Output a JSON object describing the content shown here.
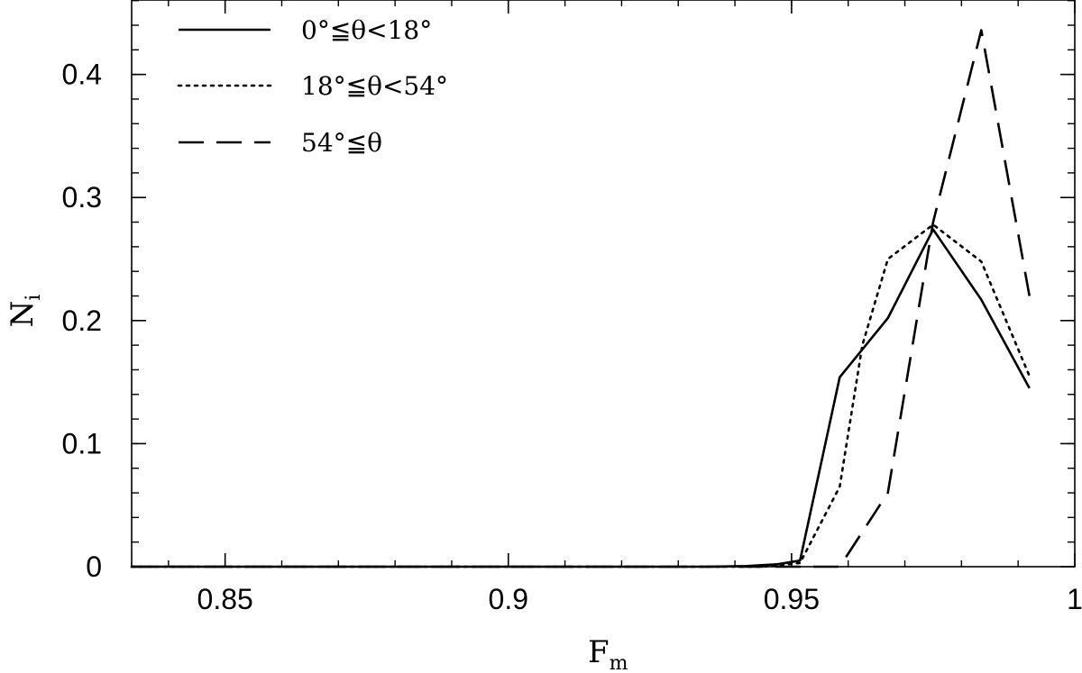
{
  "chart_data": {
    "type": "line",
    "xlabel": "F",
    "xlabel_sub": "m",
    "ylabel": "N",
    "ylabel_sub": "i",
    "xlim": [
      0.8335,
      1.0
    ],
    "ylim": [
      0,
      0.4605
    ],
    "x_ticks": [
      0.85,
      0.9,
      0.95,
      1.0
    ],
    "x_tick_labels": [
      "0.85",
      "0.9",
      "0.95",
      "1"
    ],
    "y_ticks": [
      0,
      0.1,
      0.2,
      0.3,
      0.4
    ],
    "y_tick_labels": [
      "0",
      "0.1",
      "0.2",
      "0.3",
      "0.4"
    ],
    "grid": false,
    "legend_position": "top-left",
    "series": [
      {
        "name": "0°≦θ<18°",
        "style": "solid",
        "x": [
          0.8335,
          0.935,
          0.942,
          0.9475,
          0.9515,
          0.9585,
          0.967,
          0.975,
          0.9835,
          0.992
        ],
        "y": [
          0,
          0,
          0.0005,
          0.002,
          0.005,
          0.154,
          0.202,
          0.274,
          0.217,
          0.145
        ]
      },
      {
        "name": "18°≦θ<54°",
        "style": "dotted",
        "x": [
          0.8335,
          0.945,
          0.9515,
          0.9585,
          0.9625,
          0.967,
          0.975,
          0.9835,
          0.992
        ],
        "y": [
          0,
          0,
          0.003,
          0.065,
          0.18,
          0.25,
          0.278,
          0.248,
          0.155
        ]
      },
      {
        "name": "54°≦θ",
        "style": "dashed",
        "x": [
          0.8335,
          0.9585,
          0.967,
          0.975,
          0.9835,
          0.992
        ],
        "y": [
          0,
          0,
          0.06,
          0.28,
          0.436,
          0.22
        ]
      }
    ]
  }
}
